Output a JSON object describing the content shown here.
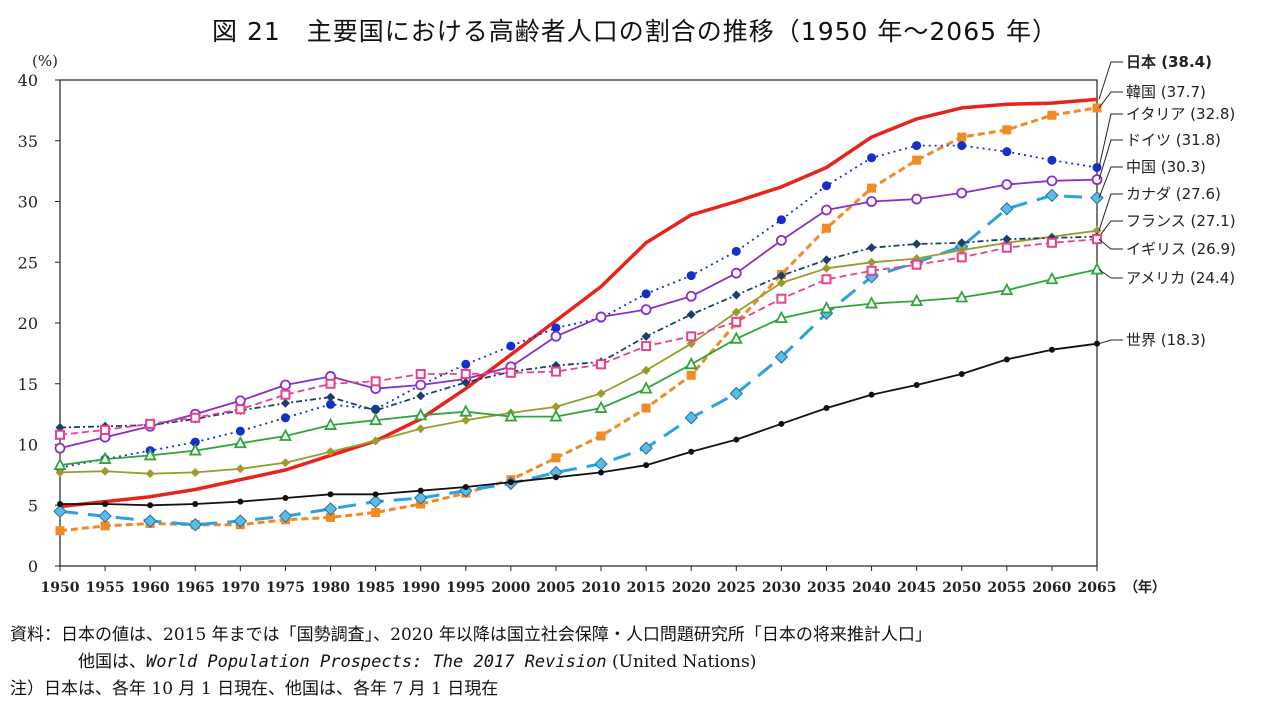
{
  "title": "図 21　主要国における高齢者人口の割合の推移（1950 年～2065 年）",
  "chart_data": {
    "type": "line",
    "title": "図 21　主要国における高齢者人口の割合の推移（1950 年～2065 年）",
    "ylabel": "(%)",
    "xlabel": "（年）",
    "ylim": [
      0,
      40
    ],
    "yticks": [
      0,
      5,
      10,
      15,
      20,
      25,
      30,
      35,
      40
    ],
    "x": [
      1950,
      1955,
      1960,
      1965,
      1970,
      1975,
      1980,
      1985,
      1990,
      1995,
      2000,
      2005,
      2010,
      2015,
      2020,
      2025,
      2030,
      2035,
      2040,
      2045,
      2050,
      2055,
      2060,
      2065
    ],
    "grid": false,
    "legend": "right, labels at line ends",
    "series": [
      {
        "name": "日本",
        "label": "日本 (38.4)",
        "color": "#e8231b",
        "style": "solid",
        "marker": "none",
        "values": [
          4.9,
          5.3,
          5.7,
          6.3,
          7.1,
          7.9,
          9.1,
          10.3,
          12.1,
          14.6,
          17.4,
          20.2,
          23.0,
          26.6,
          28.9,
          30.0,
          31.2,
          32.8,
          35.3,
          36.8,
          37.7,
          38.0,
          38.1,
          38.4
        ]
      },
      {
        "name": "韓国",
        "label": "韓国 (37.7)",
        "color": "#f08a24",
        "style": "dashed",
        "marker": "square",
        "values": [
          2.9,
          3.3,
          3.5,
          3.4,
          3.4,
          3.8,
          4.0,
          4.4,
          5.1,
          6.0,
          7.1,
          8.9,
          10.7,
          13.0,
          15.7,
          20.0,
          24.0,
          27.8,
          31.1,
          33.4,
          35.3,
          35.9,
          37.1,
          37.7
        ]
      },
      {
        "name": "イタリア",
        "label": "イタリア (32.8)",
        "color": "#1530c8",
        "style": "dotted",
        "marker": "circle",
        "values": [
          8.1,
          8.8,
          9.5,
          10.2,
          11.1,
          12.2,
          13.3,
          12.9,
          14.9,
          16.6,
          18.1,
          19.6,
          20.4,
          22.4,
          23.9,
          25.9,
          28.5,
          31.3,
          33.6,
          34.6,
          34.6,
          34.1,
          33.4,
          32.8
        ]
      },
      {
        "name": "ドイツ",
        "label": "ドイツ (31.8)",
        "color": "#8a2fc8",
        "style": "solid",
        "marker": "open-circle",
        "values": [
          9.7,
          10.6,
          11.5,
          12.5,
          13.6,
          14.9,
          15.6,
          14.6,
          14.9,
          15.4,
          16.4,
          18.9,
          20.5,
          21.1,
          22.2,
          24.1,
          26.8,
          29.3,
          30.0,
          30.2,
          30.7,
          31.4,
          31.7,
          31.8
        ]
      },
      {
        "name": "中国",
        "label": "中国 (30.3)",
        "color": "#2aa3dc",
        "style": "longdash",
        "marker": "diamond",
        "values": [
          4.5,
          4.1,
          3.7,
          3.4,
          3.7,
          4.1,
          4.7,
          5.3,
          5.6,
          6.2,
          6.8,
          7.7,
          8.4,
          9.7,
          12.2,
          14.2,
          17.2,
          20.8,
          23.8,
          25.0,
          26.3,
          29.4,
          30.5,
          30.3
        ]
      },
      {
        "name": "カナダ",
        "label": "カナダ (27.6)",
        "color": "#9b9b2f",
        "style": "solid",
        "marker": "diamond-small",
        "values": [
          7.7,
          7.8,
          7.6,
          7.7,
          8.0,
          8.5,
          9.4,
          10.3,
          11.3,
          12.0,
          12.6,
          13.1,
          14.2,
          16.1,
          18.3,
          20.9,
          23.3,
          24.5,
          25.0,
          25.3,
          26.0,
          26.6,
          27.1,
          27.6
        ]
      },
      {
        "name": "フランス",
        "label": "フランス (27.1)",
        "color": "#1b3f6b",
        "style": "dashdot",
        "marker": "diamond-small",
        "values": [
          11.4,
          11.5,
          11.6,
          12.1,
          12.8,
          13.4,
          13.9,
          12.8,
          14.0,
          15.1,
          16.0,
          16.5,
          16.8,
          18.9,
          20.7,
          22.3,
          23.9,
          25.2,
          26.2,
          26.5,
          26.6,
          26.9,
          27.0,
          27.1
        ]
      },
      {
        "name": "イギリス",
        "label": "イギリス (26.9)",
        "color": "#e8408e",
        "style": "dashed",
        "marker": "open-square",
        "values": [
          10.8,
          11.2,
          11.7,
          12.2,
          12.9,
          14.1,
          15.0,
          15.2,
          15.8,
          15.8,
          15.9,
          16.0,
          16.6,
          18.1,
          18.9,
          20.1,
          22.0,
          23.6,
          24.3,
          24.8,
          25.4,
          26.2,
          26.6,
          26.9
        ]
      },
      {
        "name": "アメリカ",
        "label": "アメリカ (24.4)",
        "color": "#2fa53b",
        "style": "solid",
        "marker": "open-triangle",
        "values": [
          8.3,
          8.8,
          9.1,
          9.5,
          10.1,
          10.7,
          11.6,
          12.0,
          12.4,
          12.7,
          12.3,
          12.3,
          13.0,
          14.6,
          16.6,
          18.7,
          20.4,
          21.2,
          21.6,
          21.8,
          22.1,
          22.7,
          23.6,
          24.4
        ]
      },
      {
        "name": "世界",
        "label": "世界 (18.3)",
        "color": "#111111",
        "style": "solid",
        "marker": "dot",
        "values": [
          5.1,
          5.1,
          5.0,
          5.1,
          5.3,
          5.6,
          5.9,
          5.9,
          6.2,
          6.5,
          6.9,
          7.3,
          7.7,
          8.3,
          9.4,
          10.4,
          11.7,
          13.0,
          14.1,
          14.9,
          15.8,
          17.0,
          17.8,
          18.3
        ]
      }
    ]
  },
  "notes": {
    "line1": "資料：日本の値は、2015 年までは「国勢調査」、2020 年以降は国立社会保障・人口問題研究所「日本の将来推計人口」",
    "line2_prefix": "他国は、",
    "line2_italic": "World Population Prospects: The 2017 Revision",
    "line2_suffix": " (United Nations)",
    "line3": "注）日本は、各年 10 月 1 日現在、他国は、各年 7 月 1 日現在"
  }
}
